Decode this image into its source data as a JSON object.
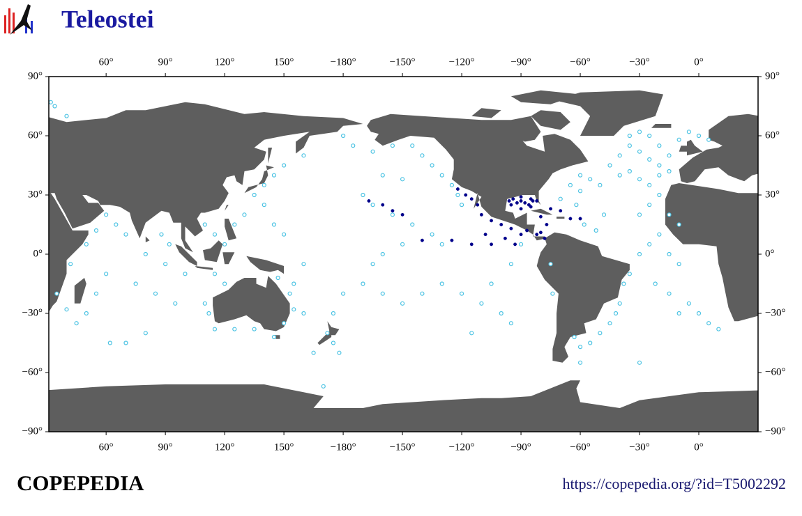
{
  "header": {
    "title": "Teleostei"
  },
  "map": {
    "xlim": [
      31,
      390
    ],
    "ylim": [
      -90,
      90
    ],
    "xticks": [
      {
        "value": 60,
        "label": "60°"
      },
      {
        "value": 90,
        "label": "90°"
      },
      {
        "value": 120,
        "label": "120°"
      },
      {
        "value": 150,
        "label": "150°"
      },
      {
        "value": 180,
        "label": "−180°"
      },
      {
        "value": 210,
        "label": "−150°"
      },
      {
        "value": 240,
        "label": "−120°"
      },
      {
        "value": 270,
        "label": "−90°"
      },
      {
        "value": 300,
        "label": "−60°"
      },
      {
        "value": 330,
        "label": "−30°"
      },
      {
        "value": 360,
        "label": "0°"
      }
    ],
    "yticks": [
      {
        "value": 90,
        "label": "90°"
      },
      {
        "value": 60,
        "label": "60°"
      },
      {
        "value": 30,
        "label": "30°"
      },
      {
        "value": 0,
        "label": "0°"
      },
      {
        "value": -30,
        "label": "−30°"
      },
      {
        "value": -60,
        "label": "−60°"
      },
      {
        "value": -90,
        "label": "−90°"
      }
    ],
    "land_color": "#5e5e5e",
    "series": [
      {
        "color": "#4cc3e3",
        "filled": false,
        "lon": [
          315,
          320,
          325,
          330,
          335,
          340,
          345,
          340,
          335,
          330,
          325,
          320,
          325,
          330,
          335,
          340,
          345,
          300,
          305,
          310,
          300,
          295,
          350,
          355,
          360,
          365,
          340,
          335,
          330,
          345,
          350,
          340,
          335,
          345,
          350,
          338,
          345,
          355,
          360,
          350,
          365,
          370,
          320,
          318,
          315,
          310,
          305,
          300,
          297,
          322,
          325,
          330,
          302,
          308,
          312,
          298,
          290,
          180,
          185,
          195,
          205,
          215,
          220,
          225,
          230,
          235,
          238,
          240,
          200,
          210,
          190,
          195,
          205,
          215,
          225,
          230,
          210,
          200,
          195,
          190,
          200,
          210,
          220,
          230,
          240,
          250,
          260,
          265,
          245,
          180,
          175,
          172,
          175,
          178,
          165,
          160,
          155,
          160,
          150,
          145,
          140,
          135,
          140,
          145,
          150,
          160,
          130,
          125,
          120,
          115,
          110,
          115,
          120,
          110,
          112,
          115,
          125,
          135,
          145,
          150,
          155,
          153,
          147,
          60,
          65,
          70,
          80,
          90,
          60,
          55,
          50,
          45,
          40,
          35,
          42,
          50,
          55,
          75,
          85,
          95,
          100,
          88,
          92,
          62,
          70,
          80,
          32,
          34,
          40,
          255,
          265,
          270,
          285,
          286,
          300,
          330,
          170
        ],
        "lat": [
          45,
          50,
          55,
          52,
          48,
          45,
          50,
          55,
          60,
          62,
          60,
          40,
          42,
          38,
          35,
          40,
          42,
          40,
          38,
          35,
          32,
          35,
          58,
          62,
          60,
          58,
          30,
          25,
          20,
          20,
          15,
          10,
          5,
          0,
          -5,
          -15,
          -20,
          -25,
          -30,
          -30,
          -35,
          -38,
          -25,
          -30,
          -35,
          -40,
          -45,
          -47,
          -42,
          -15,
          -10,
          0,
          15,
          12,
          20,
          25,
          28,
          60,
          55,
          52,
          55,
          55,
          50,
          45,
          40,
          35,
          30,
          25,
          40,
          38,
          30,
          25,
          20,
          15,
          10,
          5,
          5,
          0,
          -5,
          -15,
          -20,
          -25,
          -20,
          -15,
          -20,
          -25,
          -30,
          -35,
          -40,
          -20,
          -30,
          -40,
          -45,
          -50,
          -50,
          -30,
          -15,
          -5,
          10,
          15,
          25,
          30,
          35,
          40,
          45,
          50,
          20,
          15,
          5,
          10,
          15,
          -10,
          -15,
          -25,
          -30,
          -38,
          -38,
          -38,
          -42,
          -35,
          -28,
          -20,
          -12,
          20,
          15,
          10,
          0,
          -5,
          -10,
          -20,
          -30,
          -35,
          -28,
          -20,
          -5,
          5,
          12,
          -15,
          -20,
          -25,
          -10,
          10,
          5,
          -45,
          -45,
          -40,
          77,
          75,
          70,
          -15,
          -5,
          5,
          -5,
          -20,
          -55,
          -55,
          -67
        ]
      },
      {
        "color": "#00008b",
        "filled": true,
        "lon": [
          265,
          268,
          270,
          272,
          274,
          276,
          270,
          266,
          264,
          275,
          278,
          275,
          270,
          285,
          290,
          295,
          280,
          283,
          280,
          278,
          282,
          273,
          270,
          265,
          260,
          255,
          250,
          248,
          245,
          242,
          238,
          252,
          262,
          267,
          255,
          245,
          235,
          220,
          205,
          200,
          193,
          210,
          300
        ],
        "lat": [
          25,
          26,
          27,
          26,
          25,
          27,
          29,
          28,
          27,
          28,
          27,
          24,
          23,
          23,
          22,
          18,
          19,
          15,
          11,
          10,
          8,
          12,
          10,
          13,
          15,
          17,
          20,
          25,
          28,
          30,
          33,
          10,
          8,
          5,
          5,
          5,
          7,
          7,
          22,
          25,
          27,
          20,
          18
        ]
      }
    ]
  },
  "footer": {
    "brand": "COPEPEDIA",
    "url": "https://copepedia.org/?id=T5002292"
  }
}
